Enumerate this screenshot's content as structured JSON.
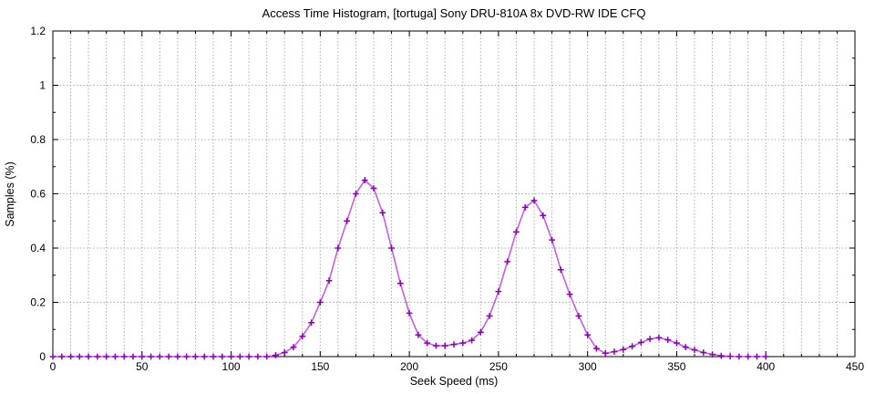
{
  "chart_data": {
    "type": "line",
    "title": "Access Time Histogram, [tortuga] Sony DRU-810A 8x DVD-RW IDE CFQ",
    "xlabel": "Seek Speed (ms)",
    "ylabel": "Samples (%)",
    "xlim": [
      0,
      450
    ],
    "ylim": [
      0,
      1.2
    ],
    "x_major_ticks": [
      0,
      50,
      100,
      150,
      200,
      250,
      300,
      350,
      400,
      450
    ],
    "x_tick_labels": [
      "0",
      "50",
      "100",
      "150",
      "200",
      "250",
      "300",
      "350",
      "400",
      "450"
    ],
    "x_minor_interval": 10,
    "y_major_ticks": [
      0,
      0.2,
      0.4,
      0.6,
      0.8,
      1,
      1.2
    ],
    "y_tick_labels": [
      "0",
      "0.2",
      "0.4",
      "0.6",
      "0.8",
      "1",
      "1.2"
    ],
    "y_minor_interval": 0.1,
    "grid": {
      "x_interval": 10,
      "y_interval": 0.2,
      "style": "dotted",
      "color": "#ababab"
    },
    "legend_position": "none",
    "colors": {
      "line": "#c45fe3",
      "marker": "#8b00b5",
      "border": "#000000",
      "background": "#ffffff"
    },
    "series": [
      {
        "name": "samples",
        "marker": "plus",
        "x": [
          0,
          5,
          10,
          15,
          20,
          25,
          30,
          35,
          40,
          45,
          50,
          55,
          60,
          65,
          70,
          75,
          80,
          85,
          90,
          95,
          100,
          105,
          110,
          115,
          120,
          125,
          130,
          135,
          140,
          145,
          150,
          155,
          160,
          165,
          170,
          175,
          180,
          185,
          190,
          195,
          200,
          205,
          210,
          215,
          220,
          225,
          230,
          235,
          240,
          245,
          250,
          255,
          260,
          265,
          270,
          275,
          280,
          285,
          290,
          295,
          300,
          305,
          310,
          315,
          320,
          325,
          330,
          335,
          340,
          345,
          350,
          355,
          360,
          365,
          370,
          375,
          380,
          385,
          390,
          395,
          400
        ],
        "y": [
          0,
          0,
          0,
          0,
          0,
          0,
          0,
          0,
          0,
          0,
          0,
          0,
          0,
          0,
          0,
          0,
          0,
          0,
          0,
          0,
          0,
          0,
          0,
          0,
          0,
          0.005,
          0.015,
          0.035,
          0.075,
          0.125,
          0.2,
          0.28,
          0.4,
          0.5,
          0.6,
          0.65,
          0.62,
          0.53,
          0.4,
          0.27,
          0.16,
          0.08,
          0.05,
          0.04,
          0.04,
          0.045,
          0.05,
          0.06,
          0.09,
          0.15,
          0.24,
          0.35,
          0.46,
          0.55,
          0.575,
          0.52,
          0.43,
          0.32,
          0.23,
          0.15,
          0.08,
          0.03,
          0.012,
          0.018,
          0.026,
          0.038,
          0.052,
          0.065,
          0.07,
          0.062,
          0.05,
          0.035,
          0.025,
          0.015,
          0.008,
          0.003,
          0.001,
          0,
          0,
          0,
          0
        ]
      }
    ]
  }
}
